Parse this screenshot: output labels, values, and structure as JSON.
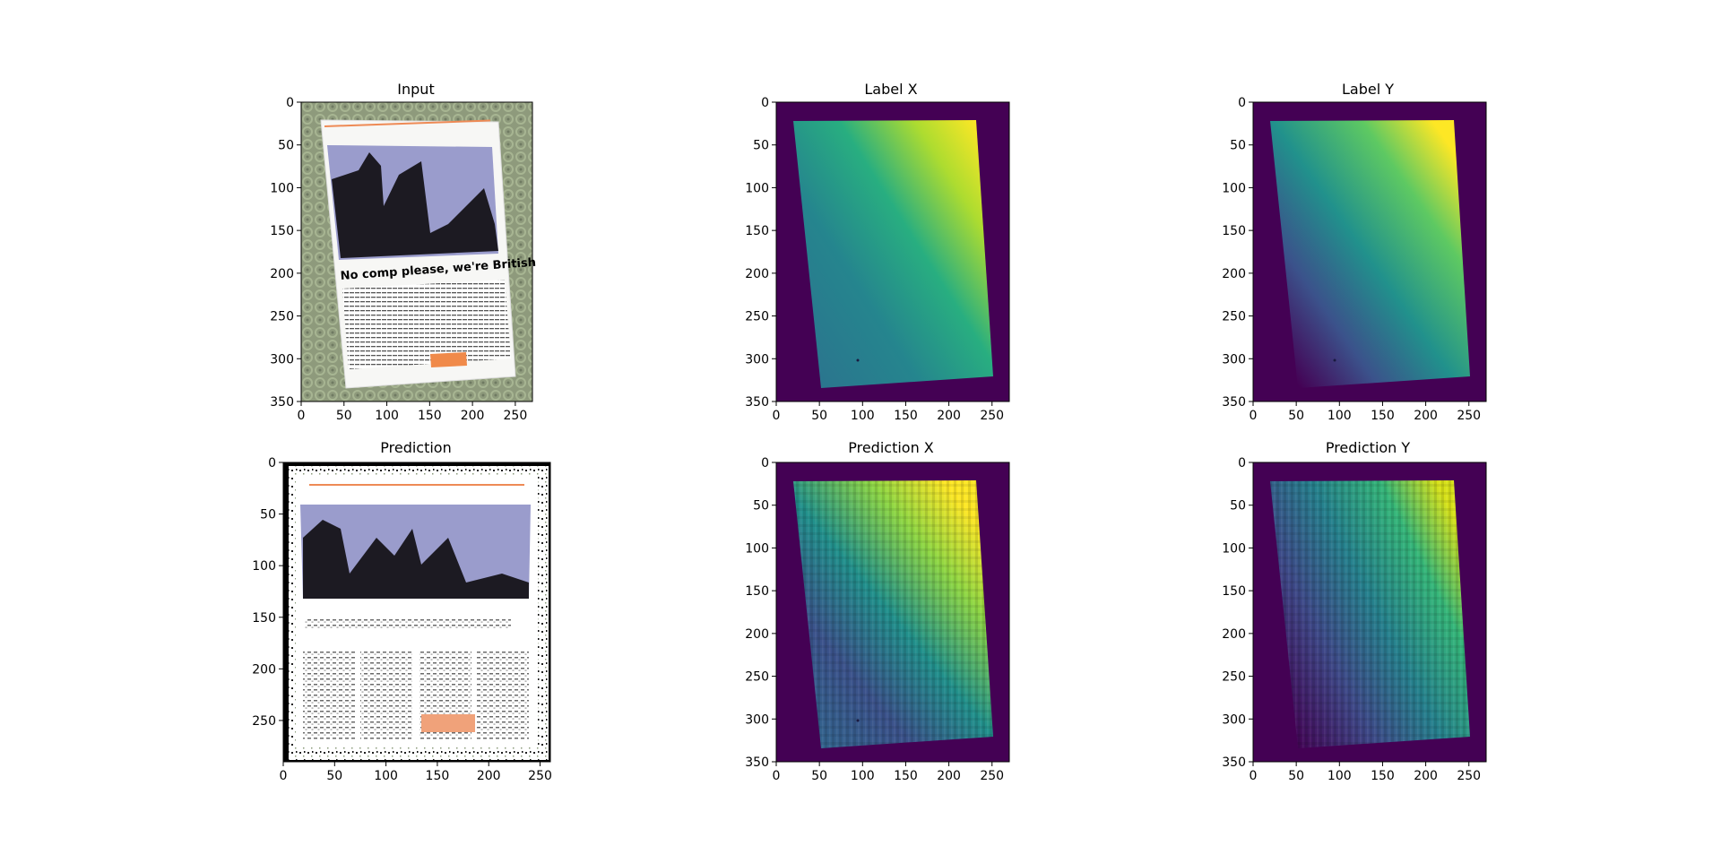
{
  "chart_data": [
    {
      "type": "image",
      "title": "Input",
      "content": "photo of a warped magazine page on a patterned green surface",
      "page_headline": "No comp please, we're British",
      "xlim": [
        0,
        270
      ],
      "ylim": [
        350,
        0
      ],
      "xticks": [
        0,
        50,
        100,
        150,
        200,
        250
      ],
      "yticks": [
        0,
        50,
        100,
        150,
        200,
        250,
        300,
        350
      ],
      "page_corners": [
        [
          23,
          20
        ],
        [
          233,
          20
        ],
        [
          253,
          322
        ],
        [
          55,
          335
        ]
      ]
    },
    {
      "type": "heatmap",
      "title": "Label X",
      "colormap": "viridis",
      "xlim": [
        0,
        270
      ],
      "ylim": [
        350,
        0
      ],
      "xticks": [
        0,
        50,
        100,
        150,
        200,
        250
      ],
      "yticks": [
        0,
        50,
        100,
        150,
        200,
        250,
        300,
        350
      ],
      "page_corners": [
        [
          20,
          22
        ],
        [
          233,
          22
        ],
        [
          255,
          320
        ],
        [
          55,
          335
        ]
      ]
    },
    {
      "type": "heatmap",
      "title": "Label Y",
      "colormap": "viridis",
      "xlim": [
        0,
        270
      ],
      "ylim": [
        350,
        0
      ],
      "xticks": [
        0,
        50,
        100,
        150,
        200,
        250
      ],
      "yticks": [
        0,
        50,
        100,
        150,
        200,
        250,
        300,
        350
      ],
      "page_corners": [
        [
          20,
          22
        ],
        [
          233,
          22
        ],
        [
          255,
          320
        ],
        [
          55,
          335
        ]
      ]
    },
    {
      "type": "image",
      "title": "Prediction",
      "content": "unwarped reconstruction of the magazine page",
      "xlim": [
        0,
        260
      ],
      "ylim": [
        290,
        0
      ],
      "xticks": [
        0,
        50,
        100,
        150,
        200,
        250
      ],
      "yticks": [
        0,
        50,
        100,
        150,
        200,
        250
      ]
    },
    {
      "type": "heatmap",
      "title": "Prediction X",
      "colormap": "viridis",
      "xlim": [
        0,
        270
      ],
      "ylim": [
        350,
        0
      ],
      "xticks": [
        0,
        50,
        100,
        150,
        200,
        250
      ],
      "yticks": [
        0,
        50,
        100,
        150,
        200,
        250,
        300,
        350
      ],
      "page_corners": [
        [
          20,
          22
        ],
        [
          233,
          22
        ],
        [
          255,
          320
        ],
        [
          55,
          335
        ]
      ]
    },
    {
      "type": "heatmap",
      "title": "Prediction Y",
      "colormap": "viridis",
      "xlim": [
        0,
        270
      ],
      "ylim": [
        350,
        0
      ],
      "xticks": [
        0,
        50,
        100,
        150,
        200,
        250
      ],
      "yticks": [
        0,
        50,
        100,
        150,
        200,
        250,
        300,
        350
      ],
      "page_corners": [
        [
          20,
          22
        ],
        [
          233,
          22
        ],
        [
          255,
          320
        ],
        [
          55,
          335
        ]
      ]
    }
  ]
}
